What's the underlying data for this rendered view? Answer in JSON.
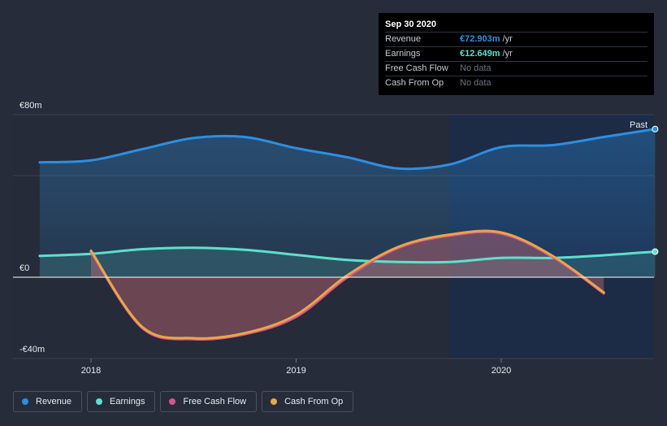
{
  "chart_data": {
    "type": "area",
    "y_ticks": [
      {
        "value": 80,
        "label": "€80m"
      },
      {
        "value": 0,
        "label": "€0"
      },
      {
        "value": -40,
        "label": "-€40m"
      }
    ],
    "ylim": [
      -40,
      80
    ],
    "xlim": [
      2017.75,
      2020.75
    ],
    "x_ticks": [
      {
        "value": 2018,
        "label": "2018"
      },
      {
        "value": 2019,
        "label": "2019"
      },
      {
        "value": 2020,
        "label": "2020"
      }
    ],
    "past_label": "Past",
    "forecast_start": 2019.75,
    "series": [
      {
        "name": "Revenue",
        "key": "revenue",
        "color": "#2d8fe0",
        "x": [
          2017.75,
          2018.0,
          2018.25,
          2018.5,
          2018.75,
          2019.0,
          2019.25,
          2019.5,
          2019.75,
          2020.0,
          2020.25,
          2020.5,
          2020.75
        ],
        "values": [
          56.5,
          57.5,
          63.0,
          68.5,
          69.0,
          63.5,
          59.0,
          53.5,
          55.5,
          64.0,
          65.0,
          69.0,
          72.9
        ]
      },
      {
        "name": "Earnings",
        "key": "earnings",
        "color": "#5ee0cc",
        "x": [
          2017.75,
          2018.0,
          2018.25,
          2018.5,
          2018.75,
          2019.0,
          2019.25,
          2019.5,
          2019.75,
          2020.0,
          2020.25,
          2020.5,
          2020.75
        ],
        "values": [
          10.5,
          11.5,
          13.8,
          14.5,
          13.5,
          11.0,
          8.5,
          7.5,
          7.5,
          9.5,
          9.5,
          10.8,
          12.6
        ]
      },
      {
        "name": "Free Cash Flow",
        "key": "fcf",
        "color": "#d6558e",
        "x": [
          2018.0,
          2018.25,
          2018.5,
          2018.75,
          2019.0,
          2019.25,
          2019.5,
          2019.75,
          2020.0,
          2020.25,
          2020.5
        ],
        "values": [
          12.5,
          -25.0,
          -30.5,
          -28.0,
          -19.5,
          0.0,
          14.5,
          20.5,
          21.5,
          10.0,
          -8.0
        ]
      },
      {
        "name": "Cash From Op",
        "key": "cfo",
        "color": "#e8a64a",
        "x": [
          2018.0,
          2018.25,
          2018.5,
          2018.75,
          2019.0,
          2019.25,
          2019.5,
          2019.75,
          2020.0,
          2020.25,
          2020.5
        ],
        "values": [
          13.0,
          -24.5,
          -30.0,
          -27.5,
          -18.5,
          1.0,
          15.0,
          21.0,
          22.0,
          10.5,
          -7.5
        ]
      }
    ]
  },
  "tooltip": {
    "title": "Sep 30 2020",
    "rows": [
      {
        "label": "Revenue",
        "value": "€72.903m",
        "unit": "/yr",
        "color": "#2d8fe0"
      },
      {
        "label": "Earnings",
        "value": "€12.649m",
        "unit": "/yr",
        "color": "#5ee0cc"
      },
      {
        "label": "Free Cash Flow",
        "value": "No data",
        "unit": "",
        "color": ""
      },
      {
        "label": "Cash From Op",
        "value": "No data",
        "unit": "",
        "color": ""
      }
    ]
  },
  "legend": [
    {
      "label": "Revenue",
      "color": "#2d8fe0"
    },
    {
      "label": "Earnings",
      "color": "#5ee0cc"
    },
    {
      "label": "Free Cash Flow",
      "color": "#d6558e"
    },
    {
      "label": "Cash From Op",
      "color": "#e8a64a"
    }
  ]
}
